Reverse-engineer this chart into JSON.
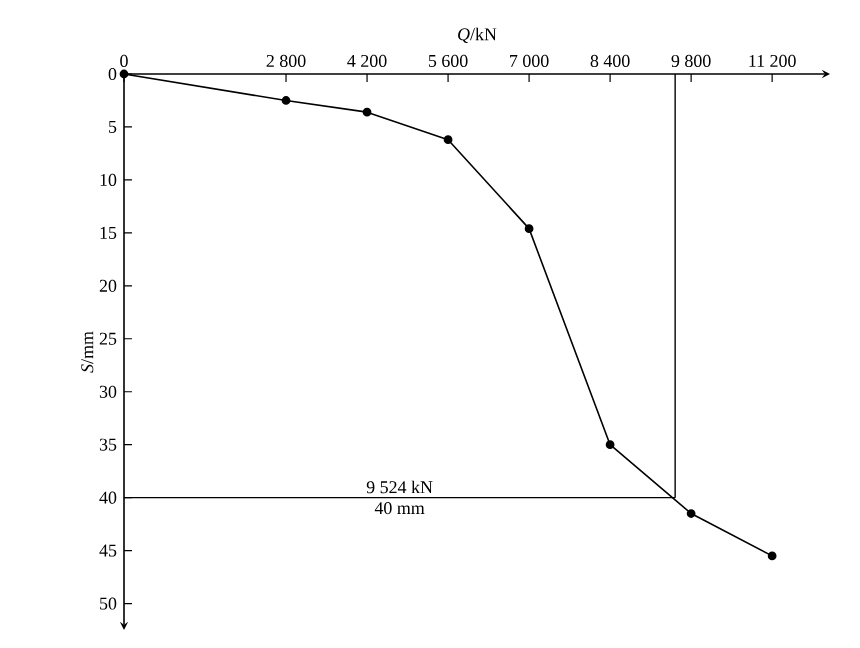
{
  "chart_data": {
    "type": "line",
    "xlabel": "*Q*/kN",
    "ylabel": "*S*/mm",
    "x": [
      0,
      2800,
      4200,
      5600,
      7000,
      8400,
      9800,
      11200
    ],
    "series": [
      {
        "color": "#000000",
        "values": [
          0,
          2.5,
          3.6,
          6.2,
          14.6,
          35,
          41.5,
          45.5
        ]
      }
    ],
    "xlim": [
      0,
      12200
    ],
    "ylim": [
      52.5,
      0
    ],
    "xticks": [
      0,
      {
        "value": 2800,
        "label": "2 800"
      },
      {
        "value": 4200,
        "label": "4 200"
      },
      {
        "value": 5600,
        "label": "5 600"
      },
      {
        "value": 7000,
        "label": "7 000"
      },
      {
        "value": 8400,
        "label": "8 400"
      },
      {
        "value": 9800,
        "label": "9 800"
      },
      {
        "value": 11200,
        "label": "11 200"
      }
    ],
    "yticks": [
      0,
      5,
      10,
      15,
      20,
      25,
      30,
      35,
      40,
      45,
      50
    ],
    "ref_lines": [
      {
        "axis": "x",
        "value": 9524
      },
      {
        "axis": "y",
        "value": 40
      }
    ],
    "annotations": [
      "9 524 kN",
      "40 mm"
    ],
    "marker": "circle",
    "line_style": "solid"
  }
}
